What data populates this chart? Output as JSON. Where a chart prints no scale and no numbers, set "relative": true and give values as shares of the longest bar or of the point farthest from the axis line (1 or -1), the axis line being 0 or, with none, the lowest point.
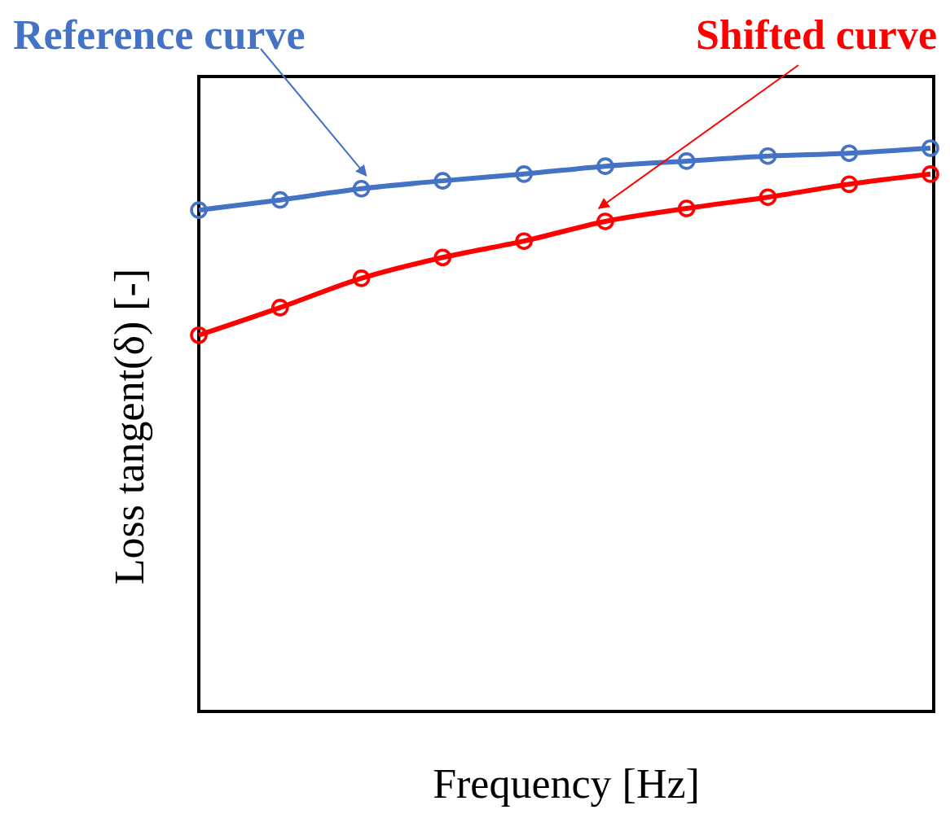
{
  "chart_data": {
    "type": "line",
    "relative": true,
    "xlabel": "Frequency [Hz]",
    "ylabel": "Loss tangent(δ) [-]",
    "categories": [
      null,
      null,
      null,
      null,
      null,
      null,
      null,
      null,
      null,
      null
    ],
    "marker": "circle",
    "line_style": "solid",
    "series": [
      {
        "color": "#4472c4",
        "values": [
          0.89,
          0.908,
          0.928,
          0.942,
          0.954,
          0.968,
          0.977,
          0.986,
          0.991,
          1
        ]
      },
      {
        "color": "#ff0000",
        "values": [
          0.668,
          0.717,
          0.769,
          0.806,
          0.835,
          0.87,
          0.893,
          0.913,
          0.936,
          0.954
        ]
      }
    ],
    "annotations": [
      "Reference curve",
      "Shifted curve"
    ]
  }
}
